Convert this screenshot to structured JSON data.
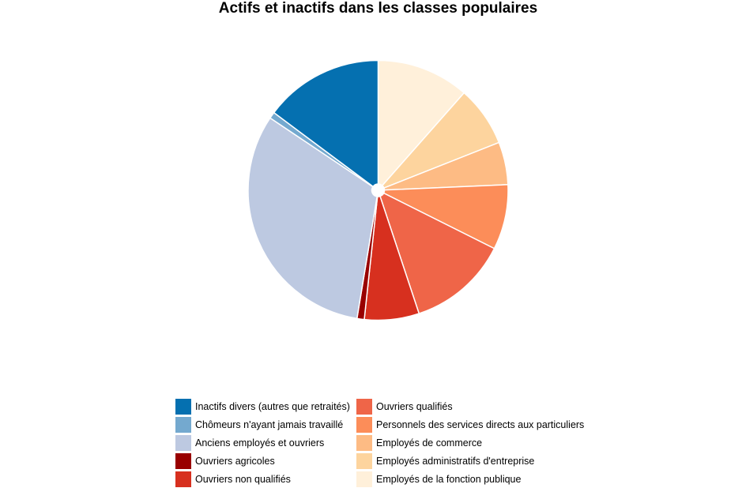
{
  "chart_data": {
    "type": "pie",
    "title": "Actifs et inactifs dans les classes populaires",
    "legend_position": "bottom",
    "slices": [
      {
        "label": "Employés de la fonction publique",
        "value": 11.5,
        "color": "#FFF0DA"
      },
      {
        "label": "Employés administratifs d'entreprise",
        "value": 7.5,
        "color": "#FDD49E"
      },
      {
        "label": "Employés de commerce",
        "value": 5.3,
        "color": "#FDBB84"
      },
      {
        "label": "Personnels des services directs aux particuliers",
        "value": 8.1,
        "color": "#FC8D59"
      },
      {
        "label": "Ouvriers qualifiés",
        "value": 12.5,
        "color": "#EF6548"
      },
      {
        "label": "Ouvriers non qualifiés",
        "value": 6.8,
        "color": "#D7301F"
      },
      {
        "label": "Ouvriers agricoles",
        "value": 0.9,
        "color": "#990000"
      },
      {
        "label": "Anciens employés et ouvriers",
        "value": 31.8,
        "color": "#BDC9E1"
      },
      {
        "label": "Chômeurs n'ayant jamais travaillé",
        "value": 0.8,
        "color": "#74A9CF"
      },
      {
        "label": "Inactifs divers (autres que retraités)",
        "value": 14.8,
        "color": "#0570B0"
      }
    ],
    "legend_order": [
      "Inactifs divers (autres que retraités)",
      "Chômeurs n'ayant jamais travaillé",
      "Anciens employés et ouvriers",
      "Ouvriers agricoles",
      "Ouvriers non qualifiés",
      "Ouvriers qualifiés",
      "Personnels des services directs aux particuliers",
      "Employés de commerce",
      "Employés administratifs d'entreprise",
      "Employés de la fonction publique"
    ]
  }
}
